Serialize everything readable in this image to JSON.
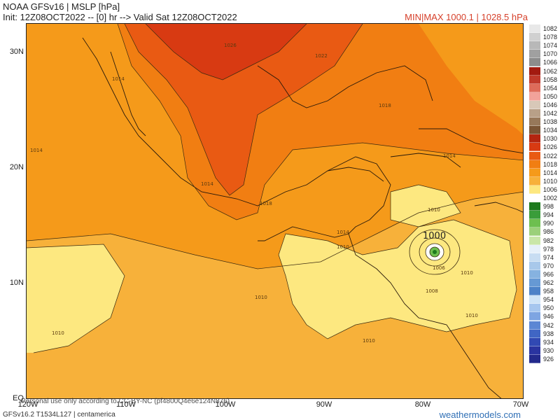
{
  "header": {
    "title": "NOAA GFSv16 | MSLP [hPa]",
    "init": "Init: 12Z08OCT2022 -- [0] hr --> Valid Sat 12Z08OCT2022",
    "minmax": "MIN|MAX 1000.1 | 1028.5 hPa"
  },
  "map": {
    "lat_labels": [
      "30N",
      "20N",
      "10N",
      "EQ"
    ],
    "lon_labels": [
      "120W",
      "110W",
      "100W",
      "90W",
      "80W",
      "70W"
    ],
    "isobar_labels": [
      "1026",
      "1022",
      "1018",
      "1014",
      "1014",
      "1014",
      "1014",
      "1018",
      "1014",
      "1010",
      "1010",
      "1010",
      "1010",
      "1010",
      "1006",
      "1008",
      "1010",
      "1010"
    ],
    "low_center_label": "1000",
    "colors": {
      "hp_1002": "#ffffff",
      "hp_1006": "#fde880",
      "hp_1010": "#f7b13a",
      "hp_1014": "#f59a1a",
      "hp_1018": "#f17e12",
      "hp_1022": "#e95a13",
      "hp_1026": "#d83a12",
      "low_core": "#3a9d3a"
    }
  },
  "colorbar": {
    "entries": [
      {
        "label": "1082",
        "color": "#e8e8e8"
      },
      {
        "label": "1078",
        "color": "#d0d0d0"
      },
      {
        "label": "1074",
        "color": "#b8b8b8"
      },
      {
        "label": "1070",
        "color": "#a0a0a0"
      },
      {
        "label": "1066",
        "color": "#8c8c8c"
      },
      {
        "label": "1062",
        "color": "#a31a10"
      },
      {
        "label": "1058",
        "color": "#c0392b"
      },
      {
        "label": "1054",
        "color": "#de6b5a"
      },
      {
        "label": "1050",
        "color": "#f2a29a"
      },
      {
        "label": "1046",
        "color": "#d8c8b8"
      },
      {
        "label": "1042",
        "color": "#b8a088"
      },
      {
        "label": "1038",
        "color": "#97785a"
      },
      {
        "label": "1034",
        "color": "#7a5535"
      },
      {
        "label": "1030",
        "color": "#b32510"
      },
      {
        "label": "1026",
        "color": "#d83a12"
      },
      {
        "label": "1022",
        "color": "#e95a13"
      },
      {
        "label": "1018",
        "color": "#f17e12"
      },
      {
        "label": "1014",
        "color": "#f59a1a"
      },
      {
        "label": "1010",
        "color": "#f7b13a"
      },
      {
        "label": "1006",
        "color": "#fde880"
      },
      {
        "label": "1002",
        "color": "#ffffff"
      },
      {
        "label": "998",
        "color": "#1e7a1e"
      },
      {
        "label": "994",
        "color": "#3a9d3a"
      },
      {
        "label": "990",
        "color": "#6dbf4f"
      },
      {
        "label": "986",
        "color": "#9bd07a"
      },
      {
        "label": "982",
        "color": "#c9e6a8"
      },
      {
        "label": "978",
        "color": "#e6f0fa"
      },
      {
        "label": "974",
        "color": "#c8ddf2"
      },
      {
        "label": "970",
        "color": "#a8c8ea"
      },
      {
        "label": "966",
        "color": "#86b2e0"
      },
      {
        "label": "962",
        "color": "#6699d4"
      },
      {
        "label": "958",
        "color": "#4d82c8"
      },
      {
        "label": "954",
        "color": "#cfe4f7"
      },
      {
        "label": "950",
        "color": "#a6c6ee"
      },
      {
        "label": "946",
        "color": "#7ea5e2"
      },
      {
        "label": "942",
        "color": "#5c86d4"
      },
      {
        "label": "938",
        "color": "#4066c4"
      },
      {
        "label": "934",
        "color": "#3149b3"
      },
      {
        "label": "930",
        "color": "#2a34a0"
      },
      {
        "label": "926",
        "color": "#232a8c"
      }
    ]
  },
  "footer": {
    "disclaimer": "Personal use only according to CC-BY-NC (pf4800Q4e6e124N876)",
    "model_info": "GFSv16.2 T1534L127 | centamerica",
    "brand": "weathermodels.com"
  }
}
